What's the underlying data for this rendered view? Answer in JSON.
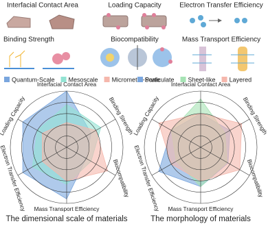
{
  "header": {
    "labels": [
      "Interfacial Contact Area",
      "Loading Capacity",
      "Electron Transfer Efficiency",
      "Binding Strength",
      "Biocompatibility",
      "Mass Transport Efficiency"
    ]
  },
  "chart_data": [
    {
      "type": "radar",
      "title": "The dimensional scale of materials",
      "categories": [
        "Interfacial Contact Area",
        "Binding Strength",
        "Biocompatibility",
        "Mass Transport Efficiency",
        "Electron Transfer Efficiency",
        "Loading Capacity"
      ],
      "rlim": [
        0,
        5
      ],
      "rticks": [
        1,
        2,
        3,
        4,
        5
      ],
      "series": [
        {
          "name": "Quantum-Scale",
          "color": "#7aa6de",
          "values": [
            5,
            2.5,
            2,
            4.6,
            4.5,
            4.5
          ]
        },
        {
          "name": "Mesoscale",
          "color": "#93e3d3",
          "values": [
            3.8,
            3.5,
            2.5,
            3.3,
            3.5,
            3
          ]
        },
        {
          "name": "Micrometer-Scale",
          "color": "#f5b7ac",
          "values": [
            2.2,
            3,
            4.2,
            3,
            2.5,
            2.5
          ]
        }
      ]
    },
    {
      "type": "radar",
      "title": "The morphology of materials",
      "categories": [
        "Interfacial Contact Area",
        "Binding Strength",
        "Biocompatibility",
        "Mass Transport Efficiency",
        "Electron Transfer Efficiency",
        "Loading Capacity"
      ],
      "rlim": [
        0,
        5
      ],
      "rticks": [
        1,
        2,
        3,
        4,
        5
      ],
      "series": [
        {
          "name": "Particulate",
          "color": "#7aa6de",
          "values": [
            3,
            3,
            2.8,
            3.5,
            4.3,
            3
          ]
        },
        {
          "name": "Sheet-like",
          "color": "#a6e3b4",
          "values": [
            4.3,
            2.5,
            2.7,
            3.5,
            2.5,
            3
          ]
        },
        {
          "name": "Layered",
          "color": "#f5b7ac",
          "values": [
            3,
            4.2,
            4,
            3,
            3,
            4.3
          ]
        }
      ]
    }
  ]
}
